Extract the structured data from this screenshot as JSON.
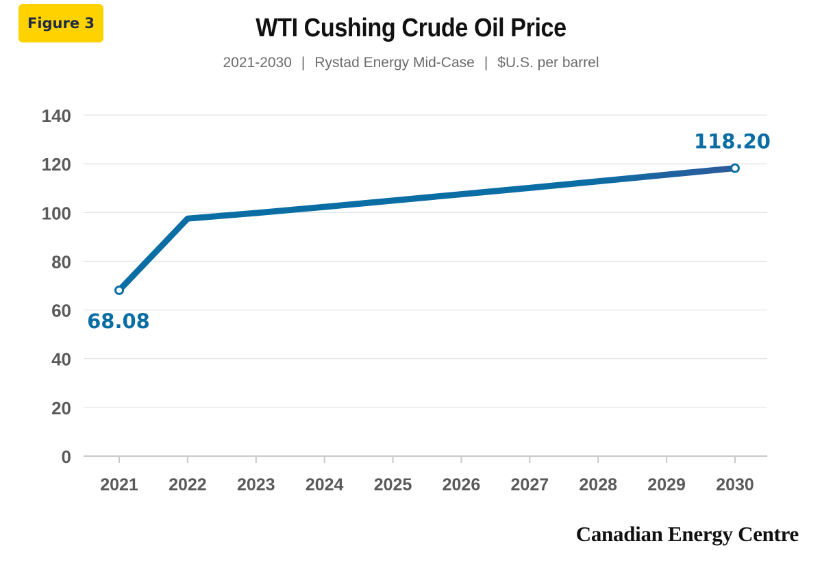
{
  "badge": {
    "label": "Figure 3"
  },
  "header": {
    "title": "WTI Cushing Crude Oil Price",
    "subtitle_parts": [
      "2021-2030",
      "Rystad Energy Mid-Case",
      "$U.S. per barrel"
    ]
  },
  "brand": {
    "name": "Canadian Energy Centre"
  },
  "colors": {
    "line": "#0A6EA4",
    "line_end": "#2E5A9C",
    "label": "#0A6EA4",
    "axis_text": "#5a5a5a",
    "grid": "#dcdcdc"
  },
  "chart_data": {
    "type": "line",
    "title": "WTI Cushing Crude Oil Price",
    "subtitle": "2021-2030 | Rystad Energy Mid-Case | $U.S. per barrel",
    "xlabel": "",
    "ylabel": "",
    "ylim": [
      0,
      140
    ],
    "yticks": [
      0,
      20,
      40,
      60,
      80,
      100,
      120,
      140
    ],
    "grid": true,
    "x": [
      "2021",
      "2022",
      "2023",
      "2024",
      "2025",
      "2026",
      "2027",
      "2028",
      "2029",
      "2030"
    ],
    "series": [
      {
        "values": [
          68.08,
          97.5,
          99.8,
          102.3,
          104.9,
          107.5,
          110.1,
          112.8,
          115.5,
          118.2
        ]
      }
    ],
    "annotations": [
      {
        "x": "2021",
        "value": 68.08,
        "text": "68.08"
      },
      {
        "x": "2030",
        "value": 118.2,
        "text": "118.20"
      }
    ]
  }
}
